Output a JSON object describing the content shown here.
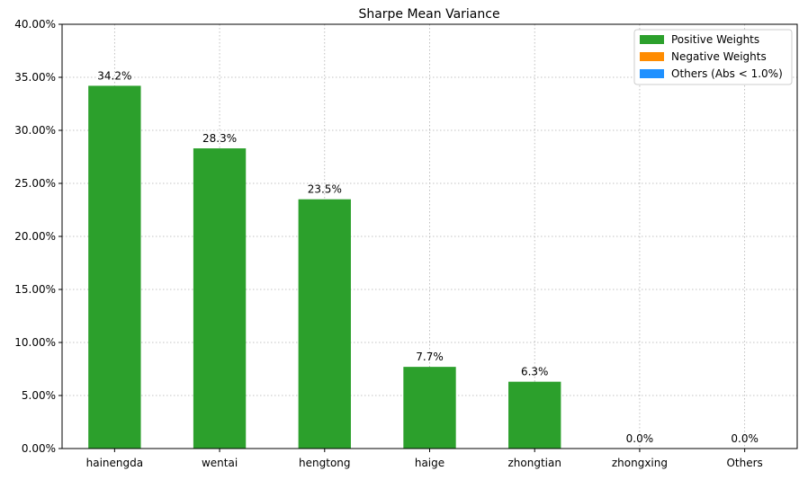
{
  "chart_data": {
    "type": "bar",
    "title": "Sharpe Mean Variance",
    "xlabel": "",
    "ylabel": "",
    "categories": [
      "hainengda",
      "wentai",
      "hengtong",
      "haige",
      "zhongtian",
      "zhongxing",
      "Others"
    ],
    "values": [
      34.2,
      28.3,
      23.5,
      7.7,
      6.3,
      0.0,
      0.0
    ],
    "value_labels": [
      "34.2%",
      "28.3%",
      "23.5%",
      "7.7%",
      "6.3%",
      "0.0%",
      "0.0%"
    ],
    "ylim": [
      0,
      40
    ],
    "yticks": [
      0,
      5,
      10,
      15,
      20,
      25,
      30,
      35,
      40
    ],
    "ytick_labels": [
      "0.00%",
      "5.00%",
      "10.00%",
      "15.00%",
      "20.00%",
      "25.00%",
      "30.00%",
      "35.00%",
      "40.00%"
    ],
    "grid": true,
    "legend_position": "top-right",
    "legend": [
      {
        "label": "Positive Weights",
        "color": "#2ca02c"
      },
      {
        "label": "Negative Weights",
        "color": "#ff8c00"
      },
      {
        "label": "Others (Abs < 1.0%)",
        "color": "#1e90ff"
      }
    ],
    "bar_color": "#2ca02c"
  }
}
